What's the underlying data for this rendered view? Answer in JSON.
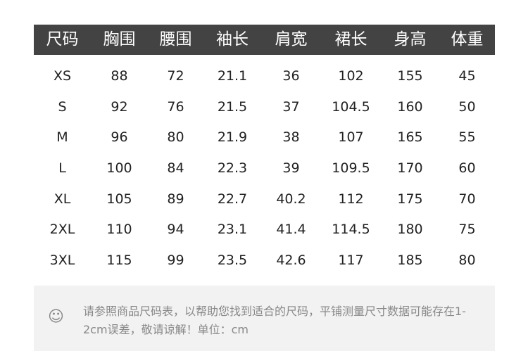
{
  "headers": [
    "尺码",
    "胸围",
    "腰围",
    "袖长",
    "肩宽",
    "裙长",
    "身高",
    "体重"
  ],
  "rows": [
    [
      "XS",
      "88",
      "72",
      "21.1",
      "36",
      "102",
      "155",
      "45"
    ],
    [
      "S",
      "92",
      "76",
      "21.5",
      "37",
      "104.5",
      "160",
      "50"
    ],
    [
      "M",
      "96",
      "80",
      "21.9",
      "38",
      "107",
      "165",
      "55"
    ],
    [
      "L",
      "100",
      "84",
      "22.3",
      "39",
      "109.5",
      "170",
      "60"
    ],
    [
      "XL",
      "105",
      "89",
      "22.7",
      "40.2",
      "112",
      "175",
      "70"
    ],
    [
      "2XL",
      "110",
      "94",
      "23.1",
      "41.4",
      "114.5",
      "180",
      "75"
    ],
    [
      "3XL",
      "115",
      "99",
      "23.5",
      "42.6",
      "117",
      "185",
      "80"
    ]
  ],
  "note": {
    "icon": "smiley-icon",
    "symbol": "☺",
    "text": "请参照商品尺码表，以帮助您找到适合的尺码，平铺测量尺寸数据可能存在1-2cm误差，敬请谅解！单位：cm"
  },
  "colors": {
    "header_bg": "#434343",
    "note_bg": "#f2f2f2"
  }
}
